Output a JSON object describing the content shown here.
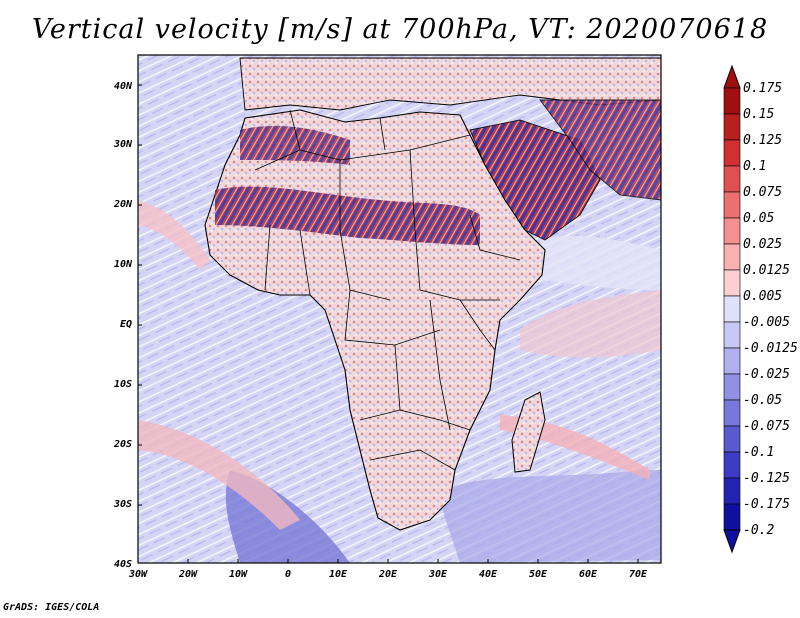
{
  "title": "Vertical velocity [m/s] at 700hPa, VT: 2020070618",
  "credit": "GrADS: IGES/COLA",
  "map": {
    "lat_labels": [
      "40N",
      "30N",
      "20N",
      "10N",
      "EQ",
      "10S",
      "20S",
      "30S",
      "40S"
    ],
    "lon_labels": [
      "30W",
      "20W",
      "10W",
      "0",
      "10E",
      "20E",
      "30E",
      "40E",
      "50E",
      "60E",
      "70E"
    ]
  },
  "colorbar": {
    "labels": [
      "0.175",
      "0.15",
      "0.125",
      "0.1",
      "0.075",
      "0.05",
      "0.025",
      "0.0125",
      "0.005",
      "-0.005",
      "-0.0125",
      "-0.025",
      "-0.05",
      "-0.075",
      "-0.1",
      "-0.125",
      "-0.175",
      "-0.2"
    ],
    "colors": [
      "#a01010",
      "#b82020",
      "#d03030",
      "#e05050",
      "#ec7070",
      "#f49090",
      "#f8b0b0",
      "#fcd0d0",
      "#ffffff",
      "#e0e0fa",
      "#c8c8f4",
      "#b0b0ee",
      "#9090e4",
      "#7878da",
      "#5a5ad0",
      "#3c3cc4",
      "#2424b4",
      "#1010a0"
    ]
  },
  "map_colors": {
    "ocean_blue": "#c8c8f0",
    "ocean_light": "#e6e6f8",
    "land_pink": "#f4c8cc",
    "desert_red": "#b02828",
    "border": "#000000"
  }
}
